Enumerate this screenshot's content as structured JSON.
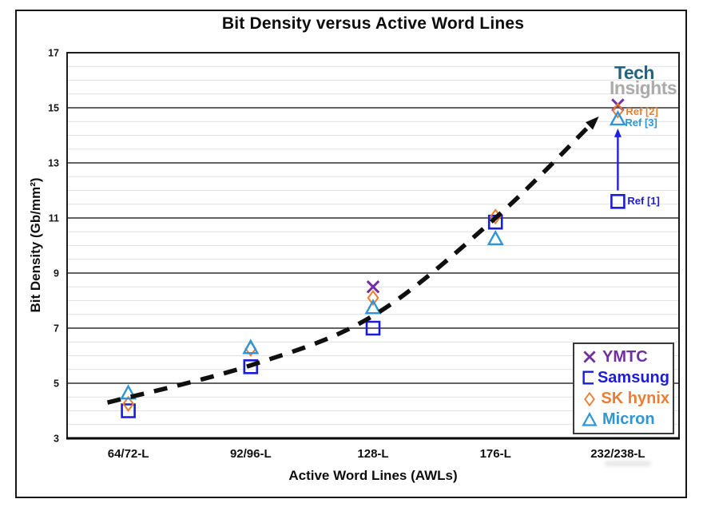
{
  "watermark": {
    "line1": "Tech",
    "line2": "Insights",
    "color1": "#26647E",
    "color2": "#ABABAB"
  },
  "chart_data": {
    "type": "scatter",
    "title": "Bit Density versus Active Word Lines",
    "xlabel": "Active Word Lines (AWLs)",
    "ylabel": "Bit Density (Gb/mm²)",
    "categories": [
      "64/72-L",
      "92/96-L",
      "128-L",
      "176-L",
      "232/238-L"
    ],
    "ylim": [
      3,
      17
    ],
    "y_major_ticks": [
      17,
      15,
      13,
      11,
      9,
      7,
      5,
      3
    ],
    "y_minor_step": 0.5,
    "grid": "horizontal-only",
    "legend_position": "inside-lower-right",
    "series": [
      {
        "name": "YMTC",
        "marker": "x",
        "color": "#7030A0",
        "values": [
          null,
          null,
          8.5,
          null,
          15.1
        ]
      },
      {
        "name": "Samsung",
        "marker": "square",
        "color": "#1C1CD8",
        "values": [
          4.0,
          5.6,
          7.0,
          10.85,
          11.6
        ]
      },
      {
        "name": "SK hynix",
        "marker": "diamond",
        "color": "#ED7D31",
        "values": [
          4.25,
          6.25,
          8.1,
          11.05,
          14.9
        ]
      },
      {
        "name": "Micron",
        "marker": "triangle",
        "color": "#2E96D6",
        "values": [
          4.65,
          6.3,
          7.75,
          10.25,
          14.6
        ]
      }
    ],
    "trend": {
      "style": "dashed",
      "color": "#101010",
      "points": [
        [
          -0.17,
          4.3
        ],
        [
          1,
          5.65
        ],
        [
          2,
          7.45
        ],
        [
          3,
          11.0
        ],
        [
          3.78,
          14.4
        ]
      ],
      "arrow_end": true
    },
    "annotations": [
      {
        "label": "Ref [2]",
        "color": "#ED7D31",
        "cat": 4,
        "value": 14.85,
        "dx": 10
      },
      {
        "label": "Ref [3]",
        "color": "#2E96D6",
        "cat": 4,
        "value": 14.45,
        "dx": 9
      },
      {
        "label": "Ref [1]",
        "color": "#1C1CD8",
        "cat": 4,
        "value": 11.6,
        "dx": 12
      }
    ],
    "arrow": {
      "cat": 4,
      "from_value": 12.0,
      "to_value": 14.25,
      "color": "#2020E0"
    }
  }
}
